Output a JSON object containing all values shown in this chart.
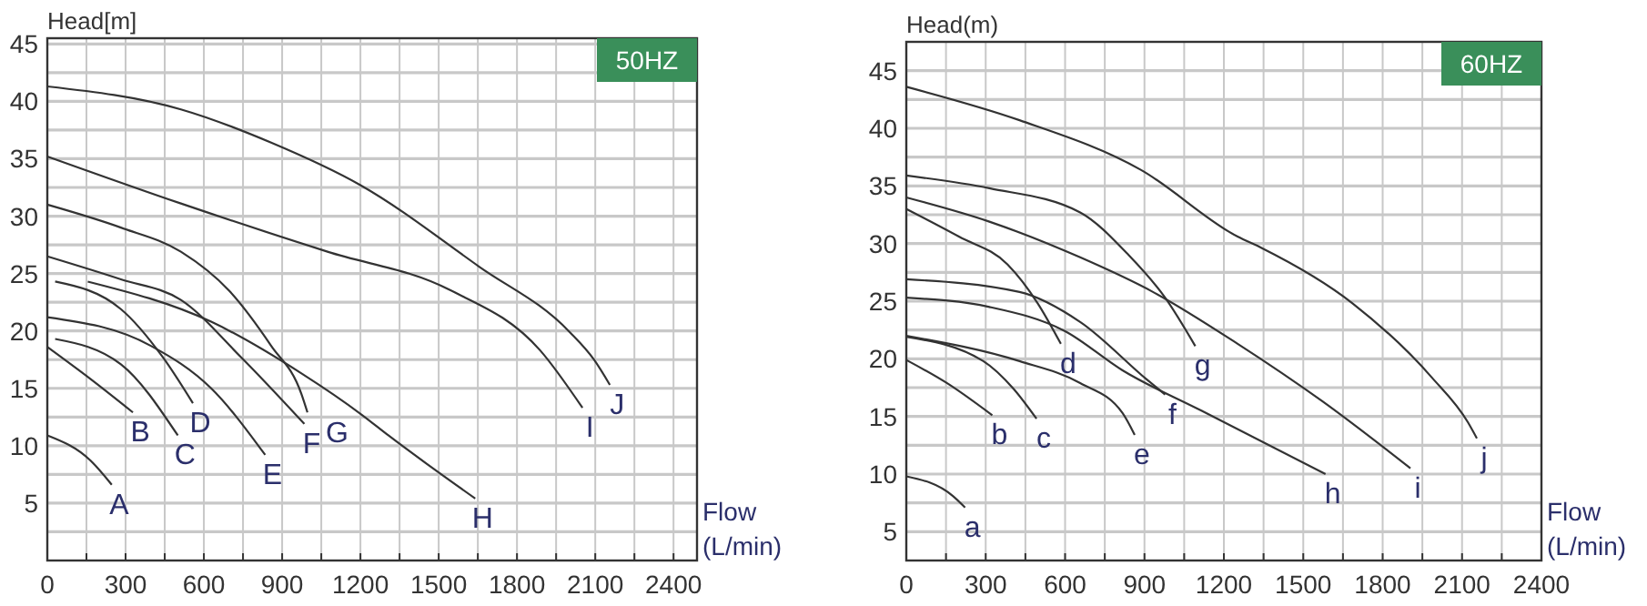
{
  "chart_data": [
    {
      "type": "line",
      "ylabel": "Head[m]",
      "xlabel": "Flow (L/min)",
      "annotations": [
        "50HZ"
      ],
      "xlim": [
        0,
        2490
      ],
      "ylim": [
        0,
        45.5
      ],
      "xticks": [
        0,
        {
          "value": 150,
          "label": null
        },
        300,
        {
          "value": 450,
          "label": null
        },
        600,
        {
          "value": 750,
          "label": null
        },
        900,
        {
          "value": 1050,
          "label": null
        },
        1200,
        {
          "value": 1350,
          "label": null
        },
        1500,
        {
          "value": 1650,
          "label": null
        },
        1800,
        {
          "value": 1950,
          "label": null
        },
        2100,
        {
          "value": 2250,
          "label": null
        },
        2400
      ],
      "yticks": [
        {
          "value": 2.5,
          "label": null
        },
        5,
        {
          "value": 7.5,
          "label": null
        },
        10,
        {
          "value": 12.5,
          "label": null
        },
        15,
        {
          "value": 17.5,
          "label": null
        },
        20,
        {
          "value": 22.5,
          "label": null
        },
        25,
        {
          "value": 27.5,
          "label": null
        },
        30,
        {
          "value": 32.5,
          "label": null
        },
        35,
        {
          "value": 37.5,
          "label": null
        },
        40,
        {
          "value": 42.5,
          "label": null
        },
        45
      ],
      "grid": true,
      "marker": "none",
      "line_style": "solid",
      "series": [
        {
          "name": "A",
          "color": "#333333",
          "x": [
            0,
            166,
            247
          ],
          "values": [
            10.9,
            8.7,
            6.6
          ]
        },
        {
          "name": "B",
          "color": "#333333",
          "x": [
            0,
            166,
            328
          ],
          "values": [
            18.6,
            15.8,
            12.9
          ]
        },
        {
          "name": "C",
          "color": "#333333",
          "x": [
            30,
            282,
            500
          ],
          "values": [
            19.3,
            17.1,
            10.9
          ]
        },
        {
          "name": "D",
          "color": "#333333",
          "x": [
            30,
            282,
            443,
            558
          ],
          "values": [
            24.3,
            21.9,
            17.7,
            13.7
          ]
        },
        {
          "name": "E",
          "color": "#333333",
          "x": [
            0,
            397,
            628,
            835
          ],
          "values": [
            21.2,
            18.7,
            15,
            9.2
          ]
        },
        {
          "name": "F",
          "color": "#333333",
          "x": [
            0,
            282,
            512,
            743,
            985
          ],
          "values": [
            26.5,
            24.5,
            22.7,
            17.7,
            11.9
          ]
        },
        {
          "name": "G",
          "color": "#333333",
          "x": [
            0,
            282,
            512,
            697,
            858,
            974,
            997
          ],
          "values": [
            31,
            29,
            26.9,
            23.5,
            18.7,
            14.5,
            12.9
          ]
        },
        {
          "name": "H",
          "color": "#333333",
          "x": [
            155,
            628,
            974,
            1205,
            1307,
            1640
          ],
          "values": [
            24.3,
            20.8,
            16.3,
            12.7,
            10.9,
            5.4
          ]
        },
        {
          "name": "I",
          "color": "#333333",
          "x": [
            0,
            512,
            1074,
            1540,
            1889,
            2051
          ],
          "values": [
            35.2,
            31.1,
            26.9,
            23.6,
            18.3,
            13.3
          ]
        },
        {
          "name": "J",
          "color": "#333333",
          "x": [
            0,
            512,
            858,
            1200,
            1655,
            2002,
            2095,
            2156
          ],
          "values": [
            41.3,
            39.3,
            36.4,
            32.7,
            25.6,
            19.9,
            17.5,
            15.3
          ]
        }
      ]
    },
    {
      "type": "line",
      "ylabel": "Head(m)",
      "xlabel": "Flow (L/min)",
      "annotations": [
        "60HZ"
      ],
      "xlim": [
        0,
        2400
      ],
      "ylim": [
        2.5,
        47.5
      ],
      "xticks": [
        0,
        {
          "value": 150,
          "label": null
        },
        300,
        {
          "value": 450,
          "label": null
        },
        600,
        {
          "value": 750,
          "label": null
        },
        900,
        {
          "value": 1050,
          "label": null
        },
        1200,
        {
          "value": 1350,
          "label": null
        },
        1500,
        {
          "value": 1650,
          "label": null
        },
        1800,
        {
          "value": 1950,
          "label": null
        },
        2100,
        {
          "value": 2250,
          "label": null
        },
        2400
      ],
      "yticks": [
        5,
        {
          "value": 7.5,
          "label": null
        },
        10,
        {
          "value": 12.5,
          "label": null
        },
        15,
        {
          "value": 17.5,
          "label": null
        },
        20,
        {
          "value": 22.5,
          "label": null
        },
        25,
        {
          "value": 27.5,
          "label": null
        },
        30,
        {
          "value": 32.5,
          "label": null
        },
        35,
        {
          "value": 37.5,
          "label": null
        },
        40,
        {
          "value": 42.5,
          "label": null
        },
        45
      ],
      "grid": true,
      "marker": "none",
      "line_style": "solid",
      "series": [
        {
          "name": "a",
          "color": "#333333",
          "x": [
            0,
            176,
            222
          ],
          "values": [
            9.8,
            8.1,
            7.1
          ]
        },
        {
          "name": "b",
          "color": "#333333",
          "x": [
            0,
            153,
            325
          ],
          "values": [
            19.9,
            17.9,
            15.1
          ]
        },
        {
          "name": "c",
          "color": "#333333",
          "x": [
            0,
            291,
            405,
            492
          ],
          "values": [
            21.9,
            19.8,
            17.4,
            14.8
          ]
        },
        {
          "name": "d",
          "color": "#333333",
          "x": [
            0,
            199,
            382,
            497,
            584
          ],
          "values": [
            33,
            30.6,
            28.2,
            24.8,
            21.3
          ]
        },
        {
          "name": "e",
          "color": "#333333",
          "x": [
            0,
            428,
            657,
            817,
            863
          ],
          "values": [
            22,
            19.8,
            17.9,
            15.3,
            13.4
          ]
        },
        {
          "name": "f",
          "color": "#333333",
          "x": [
            0,
            428,
            657,
            909,
            978
          ],
          "values": [
            26.9,
            25.8,
            23.2,
            18.2,
            16.9
          ]
        },
        {
          "name": "g",
          "color": "#333333",
          "x": [
            0,
            314,
            657,
            840,
            978,
            1092
          ],
          "values": [
            35.9,
            34.8,
            32.7,
            29,
            25.3,
            21.1
          ]
        },
        {
          "name": "h",
          "color": "#333333",
          "x": [
            0,
            314,
            600,
            817,
            1115,
            1584
          ],
          "values": [
            25.3,
            24.5,
            22.4,
            19,
            15.5,
            10
          ]
        },
        {
          "name": "i",
          "color": "#333333",
          "x": [
            0,
            314,
            657,
            932,
            1252,
            1573,
            1905
          ],
          "values": [
            34,
            31.9,
            28.8,
            25.8,
            21.3,
            16.3,
            10.5
          ]
        },
        {
          "name": "j",
          "color": "#333333",
          "x": [
            0,
            428,
            886,
            1252,
            1344,
            1687,
            1985,
            2122,
            2156
          ],
          "values": [
            43.6,
            40.7,
            36.4,
            30.6,
            29.6,
            24.8,
            18.4,
            14.5,
            13.1
          ]
        }
      ]
    }
  ]
}
